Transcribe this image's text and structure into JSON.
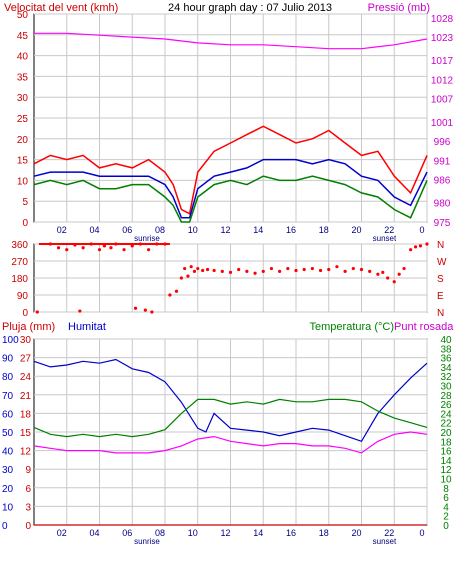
{
  "chart_data": [
    {
      "type": "line",
      "title": "24 hour graph day : 07 Julio 2013",
      "left_axis_label": "Velocitat del vent (kmh)",
      "right_axis_label": "Pressió (mb)",
      "y_left": {
        "min": 0,
        "max": 50,
        "ticks": [
          "0",
          "5",
          "10",
          "15",
          "20",
          "25",
          "30",
          "35",
          "40",
          "45",
          "50"
        ]
      },
      "y_right": {
        "min": 975,
        "max": 1029,
        "ticks": [
          "975",
          "980",
          "986",
          "991",
          "996",
          "1001",
          "1007",
          "1012",
          "1017",
          "1023",
          "1028"
        ]
      },
      "x_ticks": [
        "02",
        "04",
        "06",
        "08",
        "10",
        "12",
        "14",
        "16",
        "18",
        "20",
        "22",
        "0"
      ],
      "x_annotations": [
        {
          "label": "sunrise",
          "hour": 6.9
        },
        {
          "label": "sunset",
          "hour": 21.4
        }
      ],
      "series": [
        {
          "color": "#ff00ff",
          "axis": "right",
          "x": [
            0,
            2,
            4,
            6,
            8,
            10,
            12,
            14,
            16,
            18,
            20,
            22,
            24
          ],
          "values": [
            1024,
            1024,
            1023.5,
            1023,
            1022.5,
            1021.5,
            1021,
            1021,
            1020.5,
            1020,
            1020,
            1021,
            1022.5
          ]
        },
        {
          "color": "#ff0000",
          "axis": "left",
          "x": [
            0,
            1,
            2,
            3,
            4,
            5,
            6,
            7,
            8,
            8.5,
            9,
            9.5,
            10,
            11,
            12,
            13,
            14,
            15,
            16,
            17,
            18,
            19,
            20,
            21,
            22,
            23,
            24
          ],
          "values": [
            14,
            16,
            15,
            16,
            13,
            14,
            13,
            15,
            12,
            9,
            3,
            2,
            12,
            17,
            19,
            21,
            23,
            21,
            19,
            20,
            22,
            19,
            16,
            17,
            11,
            7,
            16
          ]
        },
        {
          "color": "#0000cc",
          "axis": "left",
          "x": [
            0,
            1,
            2,
            3,
            4,
            5,
            6,
            7,
            8,
            8.5,
            9,
            9.5,
            10,
            11,
            12,
            13,
            14,
            15,
            16,
            17,
            18,
            19,
            20,
            21,
            22,
            23,
            24
          ],
          "values": [
            11,
            12,
            12,
            12,
            11,
            11,
            11,
            11,
            9,
            6,
            1,
            1,
            8,
            11,
            12,
            13,
            15,
            15,
            15,
            14,
            15,
            14,
            11,
            10,
            6,
            4,
            12
          ]
        },
        {
          "color": "#008000",
          "axis": "left",
          "x": [
            0,
            1,
            2,
            3,
            4,
            5,
            6,
            7,
            8,
            8.5,
            9,
            9.5,
            10,
            11,
            12,
            13,
            14,
            15,
            16,
            17,
            18,
            19,
            20,
            21,
            22,
            23,
            24
          ],
          "values": [
            9,
            10,
            9,
            10,
            8,
            8,
            9,
            9,
            6,
            4,
            0,
            0,
            6,
            9,
            10,
            9,
            11,
            10,
            10,
            11,
            10,
            9,
            7,
            6,
            3,
            1,
            10
          ]
        }
      ]
    },
    {
      "type": "scatter",
      "y_left": {
        "min": 0,
        "max": 360,
        "ticks": [
          "0",
          "90",
          "180",
          "270",
          "360"
        ]
      },
      "y_right_ticks": [
        "N",
        "E",
        "S",
        "W",
        "N"
      ],
      "x_ticks": [
        "02",
        "04",
        "06",
        "08",
        "10",
        "12",
        "14",
        "16",
        "18",
        "20",
        "22",
        "0"
      ],
      "series": [
        {
          "color": "#ff0000",
          "x": [
            0.2,
            1.0,
            1.5,
            2.0,
            2.5,
            3.0,
            3.5,
            4.0,
            4.3,
            4.7,
            5.0,
            5.5,
            6.0,
            6.5,
            7.0,
            7.5,
            8.0,
            8.3,
            8.7,
            9.0,
            9.2,
            9.4,
            9.6,
            9.8,
            10.0,
            10.3,
            10.6,
            11.0,
            11.5,
            12.0,
            12.5,
            13.0,
            13.5,
            14.0,
            14.5,
            15.0,
            15.5,
            16.0,
            16.5,
            17.0,
            17.5,
            18.0,
            18.5,
            19.0,
            19.5,
            20.0,
            20.5,
            21.0,
            21.3,
            21.6,
            22.0,
            22.3,
            22.6,
            23.0,
            23.3,
            23.6,
            24.0
          ],
          "values": [
            0,
            360,
            340,
            330,
            355,
            340,
            360,
            330,
            350,
            340,
            360,
            330,
            350,
            360,
            330,
            360,
            360,
            90,
            110,
            180,
            230,
            190,
            240,
            215,
            230,
            220,
            225,
            220,
            215,
            210,
            225,
            215,
            205,
            215,
            230,
            215,
            230,
            220,
            225,
            230,
            220,
            225,
            240,
            215,
            230,
            225,
            215,
            200,
            210,
            180,
            160,
            200,
            230,
            330,
            345,
            350,
            360
          ]
        },
        {
          "color": "#ff0000",
          "x": [
            2.8,
            6.2,
            6.8,
            7.2
          ],
          "values": [
            5,
            20,
            10,
            0
          ]
        }
      ]
    },
    {
      "type": "line",
      "left_axis_label": "Pluja (mm)",
      "humidity_label": "Humitat",
      "temperature_label": "Temperatura (°C)",
      "dewpoint_label": "Punt rosada",
      "y_left_outer": {
        "min": 0,
        "max": 100,
        "ticks": [
          "0",
          "10",
          "20",
          "30",
          "40",
          "50",
          "60",
          "70",
          "80",
          "90",
          "100"
        ]
      },
      "y_left_inner": {
        "min": 0,
        "max": 36,
        "ticks": [
          "0",
          "3",
          "6",
          "9",
          "12",
          "15",
          "18",
          "21",
          "24",
          "27",
          "30"
        ]
      },
      "y_right": {
        "min": 0,
        "max": 40,
        "ticks": [
          "0",
          "2",
          "4",
          "6",
          "8",
          "10",
          "12",
          "14",
          "16",
          "18",
          "20",
          "22",
          "24",
          "26",
          "28",
          "30",
          "32",
          "34",
          "36",
          "38",
          "40"
        ]
      },
      "x_ticks": [
        "02",
        "04",
        "06",
        "08",
        "10",
        "12",
        "14",
        "16",
        "18",
        "20",
        "22",
        "0"
      ],
      "x_annotations": [
        {
          "label": "sunrise",
          "hour": 6.9
        },
        {
          "label": "sunset",
          "hour": 21.4
        }
      ],
      "series": [
        {
          "color": "#0000cc",
          "x": [
            0,
            1,
            2,
            3,
            4,
            5,
            6,
            7,
            8,
            9,
            10,
            10.5,
            11,
            12,
            13,
            14,
            15,
            16,
            17,
            18,
            19,
            20,
            21,
            22,
            23,
            24
          ],
          "values": [
            88,
            85,
            86,
            88,
            87,
            89,
            84,
            82,
            77,
            66,
            52,
            50,
            60,
            52,
            51,
            50,
            48,
            50,
            52,
            51,
            48,
            45,
            60,
            70,
            79,
            87
          ]
        },
        {
          "color": "#008000",
          "x": [
            0,
            1,
            2,
            3,
            4,
            5,
            6,
            7,
            8,
            9,
            10,
            11,
            12,
            13,
            14,
            15,
            16,
            17,
            18,
            19,
            20,
            21,
            22,
            23,
            24
          ],
          "values": [
            21,
            19.5,
            19,
            19.5,
            19,
            19.5,
            19,
            19.5,
            20.5,
            24,
            27,
            27,
            26,
            26.5,
            26,
            27,
            26.5,
            26.5,
            27,
            27,
            26.5,
            24.5,
            23,
            22,
            21
          ]
        },
        {
          "color": "#ff00ff",
          "x": [
            0,
            1,
            2,
            3,
            4,
            5,
            6,
            7,
            8,
            9,
            10,
            11,
            12,
            13,
            14,
            15,
            16,
            17,
            18,
            19,
            20,
            21,
            22,
            23,
            24
          ],
          "values": [
            17,
            16.5,
            16,
            16,
            16,
            15.5,
            15.5,
            15.5,
            16,
            17,
            18.5,
            19,
            18,
            17.5,
            17,
            17.5,
            17.5,
            17,
            17,
            16.5,
            15.5,
            18,
            19.5,
            20,
            19.5
          ]
        },
        {
          "color": "#cc0000",
          "x": [
            0,
            24
          ],
          "values": [
            0,
            0
          ]
        }
      ]
    }
  ]
}
